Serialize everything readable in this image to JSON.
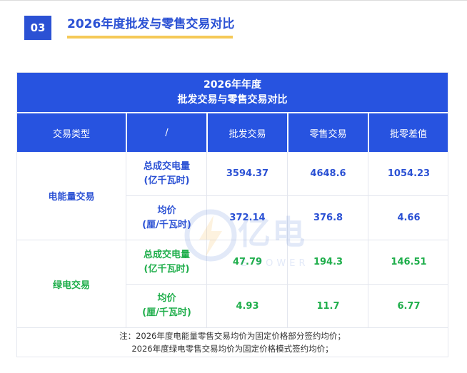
{
  "section": {
    "number": "03",
    "title": "2026年度批发与零售交易对比"
  },
  "table": {
    "title_line1": "2026年年度",
    "title_line2": "批发交易与零售交易对比",
    "headers": [
      "交易类型",
      "/",
      "批发交易",
      "零售交易",
      "批零差值"
    ],
    "groups": [
      {
        "category": "电能量交易",
        "rows": [
          {
            "metric_line1": "总成交电量",
            "metric_line2": "(亿千瓦时)",
            "values": [
              "3594.37",
              "4648.6",
              "1054.23"
            ]
          },
          {
            "metric_line1": "均价",
            "metric_line2": "(厘/千瓦时)",
            "values": [
              "372.14",
              "376.8",
              "4.66"
            ]
          }
        ]
      },
      {
        "category": "绿电交易",
        "rows": [
          {
            "metric_line1": "总成交电量",
            "metric_line2": "(亿千瓦时)",
            "values": [
              "47.79",
              "194.3",
              "146.51"
            ]
          },
          {
            "metric_line1": "均价",
            "metric_line2": "(厘/千瓦时)",
            "values": [
              "4.93",
              "11.7",
              "6.77"
            ]
          }
        ]
      }
    ],
    "note_line1": "注：2026年度电能量零售交易均价为固定价格部分签约均价；",
    "note_line2": "2026年度绿电零售交易均价为固定价格模式签约均价；"
  },
  "watermark": {
    "text": "亿电",
    "sub": "E POWER"
  },
  "colors": {
    "accent_blue": "#2753e0",
    "green": "#1fae4b",
    "underline": "#f5c957"
  }
}
